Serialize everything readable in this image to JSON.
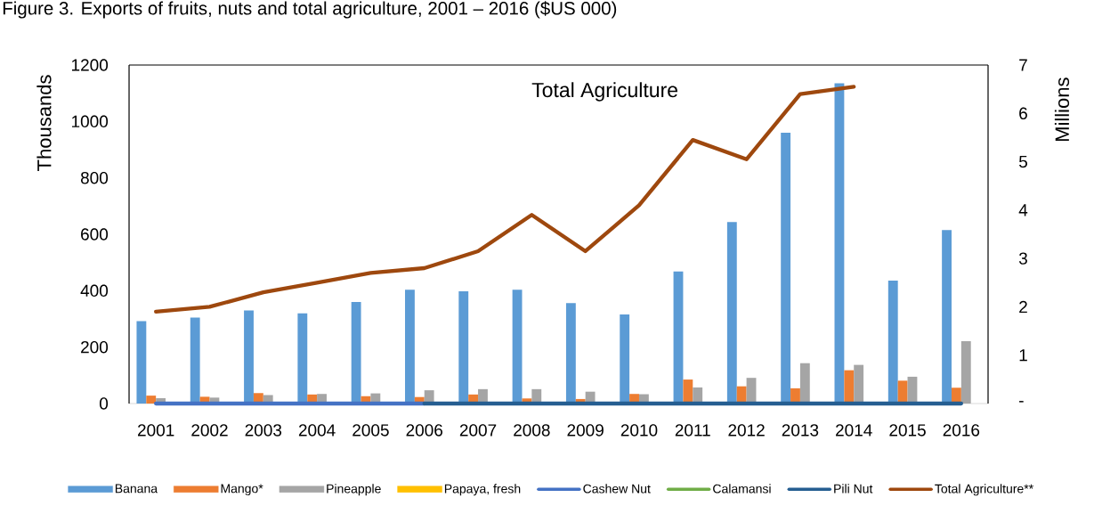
{
  "chart_data": {
    "type": "bar",
    "title": "Figure 3. Exports of fruits, nuts and total agriculture, 2001 – 2016 ($US 000)",
    "ylabel": "Thousands",
    "y2label": "Millions",
    "annotations": [
      "Total Agriculture"
    ],
    "categories": [
      "2001",
      "2002",
      "2003",
      "2004",
      "2005",
      "2006",
      "2007",
      "2008",
      "2009",
      "2010",
      "2011",
      "2012",
      "2013",
      "2014",
      "2015",
      "2016"
    ],
    "series": [
      {
        "name": "Banana",
        "color": "#5b9bd5",
        "values": [
          292,
          305,
          330,
          320,
          360,
          403,
          398,
          403,
          356,
          316,
          468,
          643,
          960,
          1135,
          436,
          615
        ]
      },
      {
        "name": "Mango*",
        "color": "#ed7d31",
        "values": [
          28,
          24,
          37,
          32,
          26,
          23,
          32,
          18,
          16,
          34,
          85,
          61,
          54,
          118,
          81,
          56
        ]
      },
      {
        "name": "Pineapple",
        "color": "#a5a5a5",
        "values": [
          19,
          21,
          30,
          34,
          36,
          47,
          51,
          51,
          42,
          33,
          57,
          91,
          143,
          137,
          95,
          221
        ]
      },
      {
        "name": "Papaya, fresh",
        "color": "#ffc000",
        "values": [
          null,
          null,
          null,
          null,
          null,
          null,
          null,
          null,
          null,
          null,
          null,
          null,
          null,
          null,
          null,
          null
        ]
      },
      {
        "name": "Cashew Nut",
        "type": "line",
        "color": "#4472c4",
        "values": [
          0,
          0,
          0,
          0,
          0,
          0,
          null,
          null,
          null,
          null,
          null,
          null,
          null,
          null,
          null,
          null
        ]
      },
      {
        "name": "Calamansi",
        "type": "line",
        "color": "#70ad47",
        "values": [
          null,
          null,
          null,
          null,
          null,
          null,
          null,
          null,
          null,
          null,
          null,
          null,
          null,
          null,
          null,
          null
        ]
      },
      {
        "name": "Pili Nut",
        "type": "line",
        "color": "#255e91",
        "values": [
          null,
          null,
          null,
          null,
          null,
          0,
          0,
          0,
          0,
          0,
          0,
          0,
          0,
          0,
          0,
          0
        ]
      },
      {
        "name": "Total Agriculture**",
        "type": "line",
        "axis": "y2",
        "color": "#9e480e",
        "values": [
          1.9,
          2.0,
          2.3,
          2.5,
          2.7,
          2.8,
          3.15,
          3.9,
          3.15,
          4.1,
          5.45,
          5.05,
          6.4,
          6.55,
          null,
          null
        ]
      }
    ],
    "ylim": [
      0,
      1200
    ],
    "yticks": [
      0,
      200,
      400,
      600,
      800,
      1000,
      1200
    ],
    "y2lim": [
      0,
      7
    ],
    "y2ticks": [
      {
        "value": 0,
        "label": "-"
      },
      1,
      2,
      3,
      4,
      5,
      6,
      7
    ],
    "legend": "bottom"
  }
}
